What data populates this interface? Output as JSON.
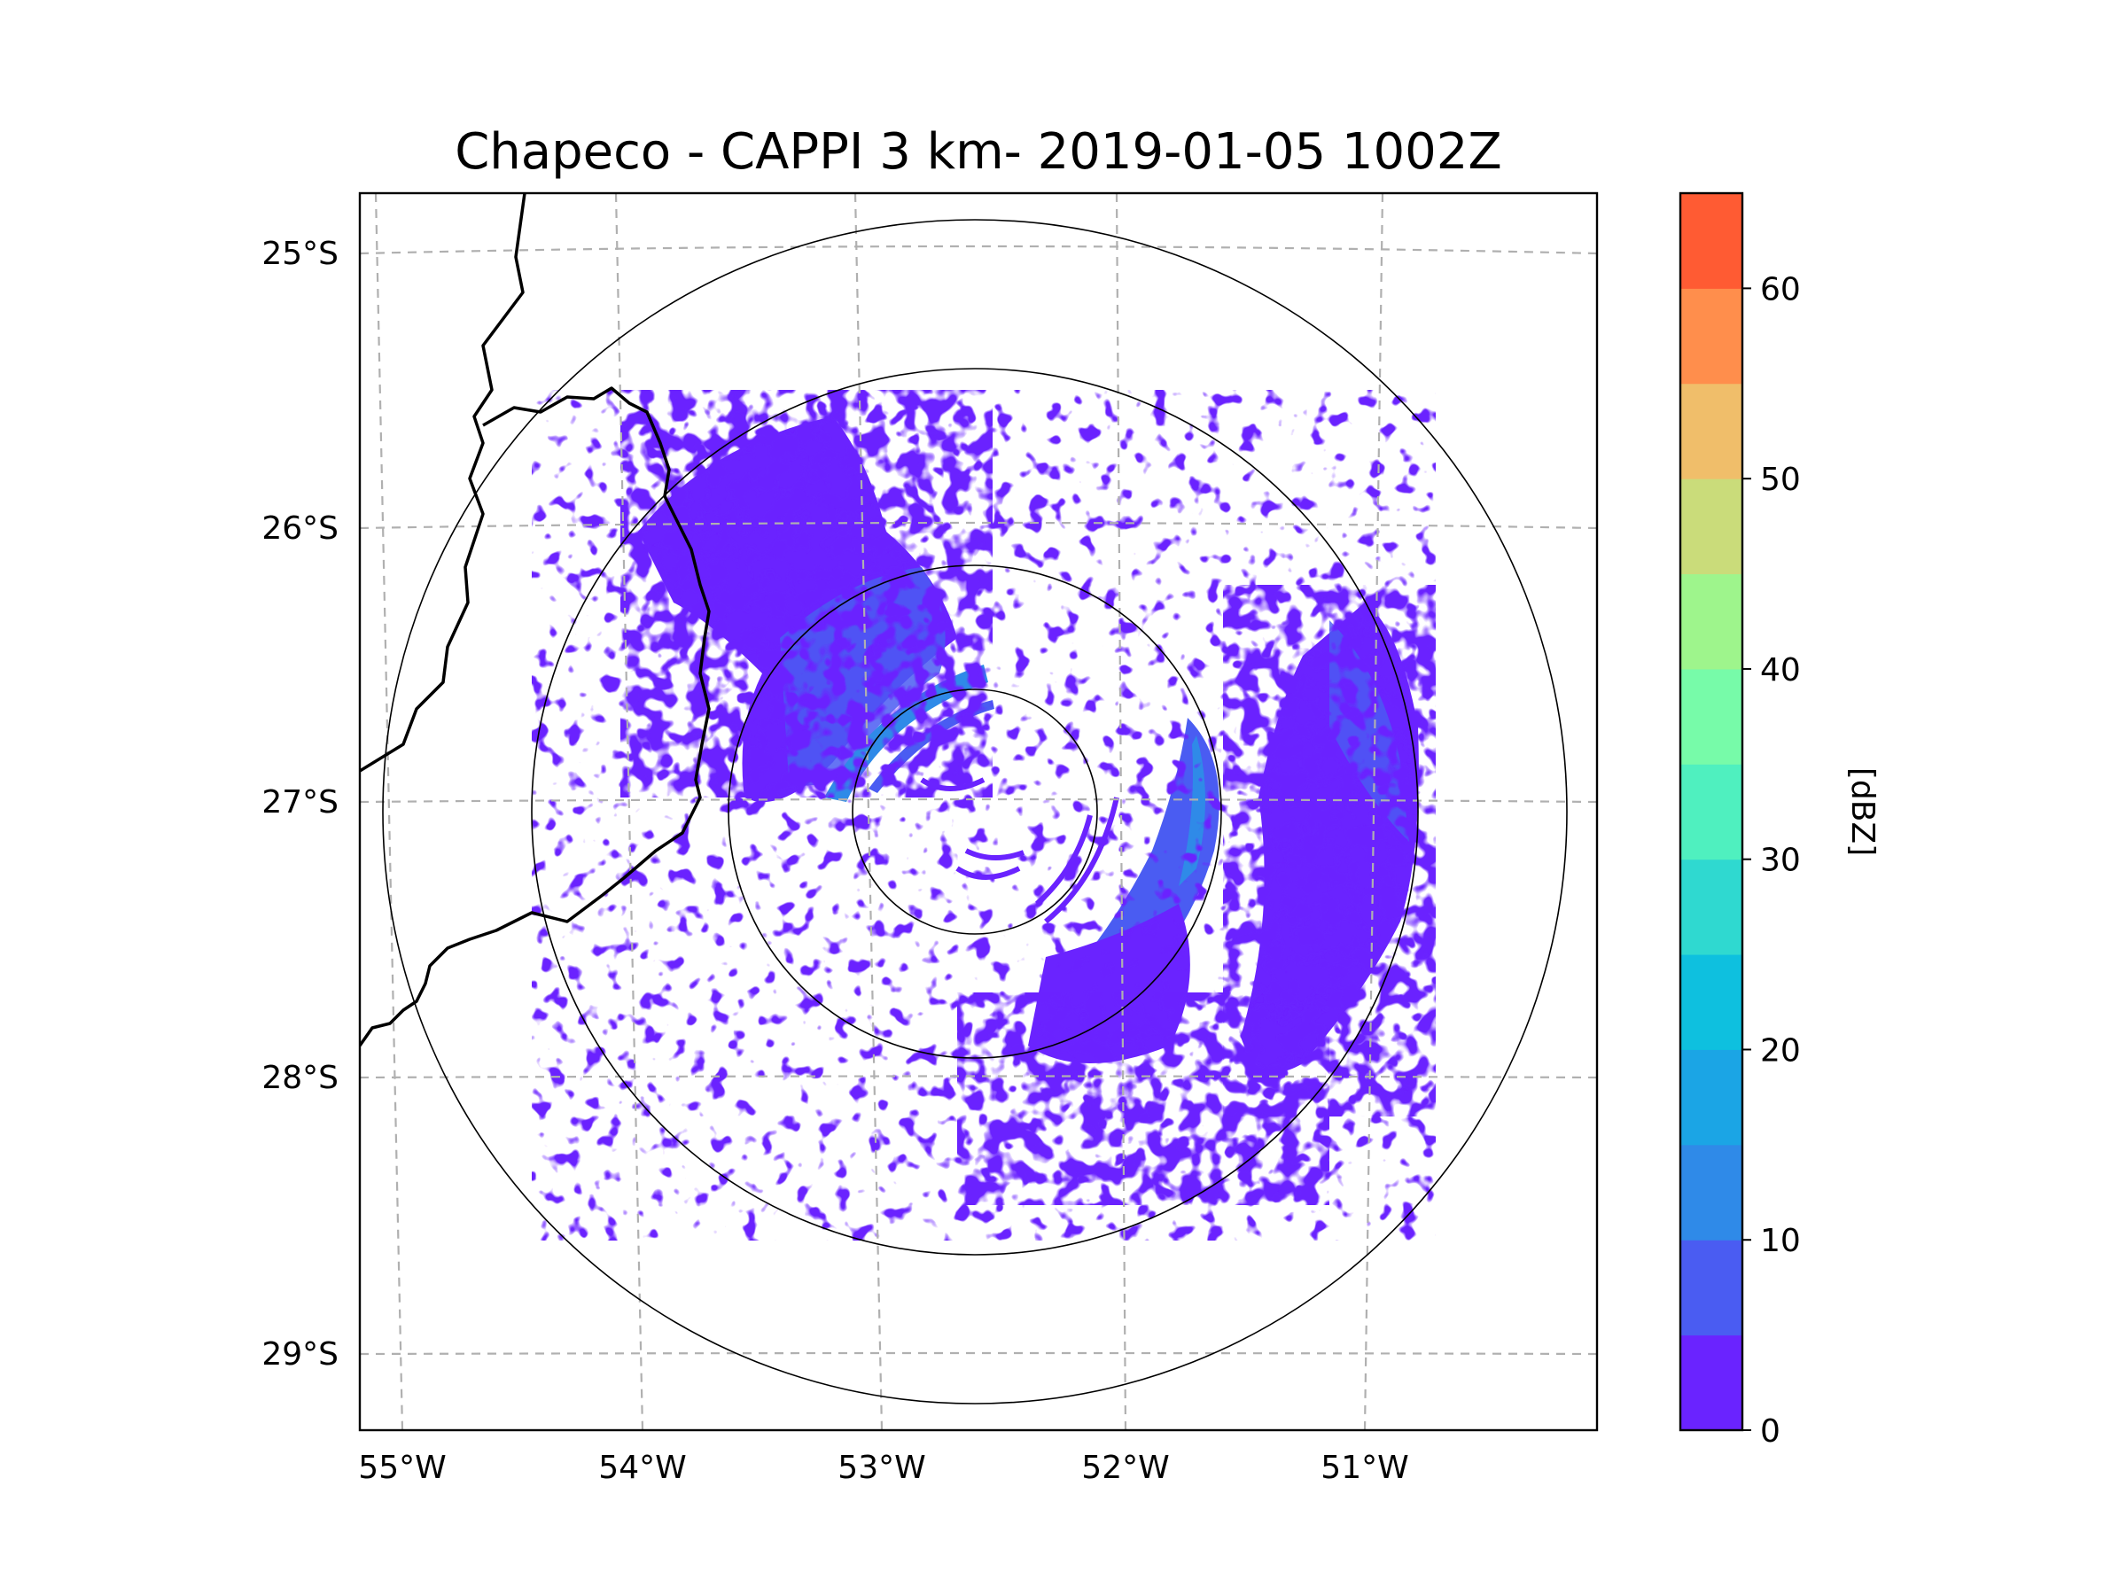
{
  "chart_data": {
    "type": "radar_ppi_map",
    "title": "Chapeco - CAPPI 3 km- 2019-01-05 1002Z",
    "x_axis": {
      "ticks": [
        -55,
        -54,
        -53,
        -52,
        -51
      ],
      "tick_labels": [
        "55°W",
        "54°W",
        "53°W",
        "52°W",
        "51°W"
      ],
      "range": [
        -55.18,
        -50.02
      ]
    },
    "y_axis": {
      "ticks": [
        -25,
        -26,
        -27,
        -28,
        -29
      ],
      "tick_labels": [
        "25°S",
        "26°S",
        "27°S",
        "28°S",
        "29°S"
      ],
      "range": [
        -29.28,
        -24.78
      ]
    },
    "grid": "dashed",
    "radar_center": {
      "lon": -52.6,
      "lat": -27.03
    },
    "range_rings": 4,
    "colorbar": {
      "label": "[dBZ]",
      "min": 0,
      "max": 65,
      "step": 5,
      "ticks": [
        0,
        10,
        20,
        30,
        40,
        50,
        60
      ],
      "tick_labels": [
        "0",
        "10",
        "20",
        "30",
        "40",
        "50",
        "60"
      ],
      "colors": [
        "#6a23ff",
        "#4a5cf2",
        "#2f8ae8",
        "#1ba5e5",
        "#0ec0df",
        "#2fd9d0",
        "#4ff0bf",
        "#77fba9",
        "#9ef58c",
        "#cadc7a",
        "#f0be6a",
        "#ff8e4c",
        "#ff5b33",
        "#ff2518"
      ]
    },
    "echo_regions": [
      {
        "name": "northwest-band",
        "dbz": [
          0,
          15
        ]
      },
      {
        "name": "east-band",
        "dbz": [
          0,
          15
        ]
      },
      {
        "name": "southeast-band",
        "dbz": [
          0,
          15
        ]
      }
    ]
  }
}
